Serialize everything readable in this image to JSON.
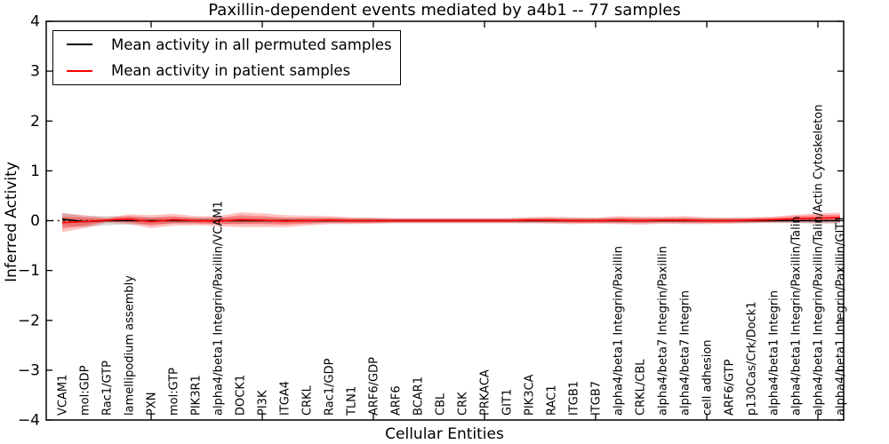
{
  "chart_data": {
    "type": "line",
    "title": "Paxillin-dependent events mediated by a4b1 -- 77 samples",
    "xlabel": "Cellular Entities",
    "ylabel": "Inferred Activity",
    "ylim": [
      -4,
      4
    ],
    "yticks": [
      4,
      3,
      2,
      1,
      0,
      -1,
      -2,
      -3,
      -4
    ],
    "xtick_values": [
      5,
      10,
      15,
      20,
      25,
      30,
      35
    ],
    "grid": false,
    "legend": {
      "position": "upper-left",
      "entries": [
        {
          "label": "Mean activity in all permuted samples",
          "color": "#000000"
        },
        {
          "label": "Mean activity in patient samples",
          "color": "#ff0000"
        }
      ]
    },
    "zero_line": {
      "value": 0,
      "style": "dotted",
      "color": "#000000"
    },
    "categories": [
      "VCAM1",
      "mol:GDP",
      "Rac1/GTP",
      "lamellipodium assembly",
      "PXN",
      "mol:GTP",
      "PIK3R1",
      "alpha4/beta1 Integrin/Paxillin/VCAM1",
      "DOCK1",
      "PI3K",
      "ITGA4",
      "CRKL",
      "Rac1/GDP",
      "TLN1",
      "ARF6/GDP",
      "ARF6",
      "BCAR1",
      "CBL",
      "CRK",
      "PRKACA",
      "GIT1",
      "PIK3CA",
      "RAC1",
      "ITGB1",
      "ITGB7",
      "alpha4/beta1 Integrin/Paxillin",
      "CRKL/CBL",
      "alpha4/beta7 Integrin/Paxillin",
      "alpha4/beta7 Integrin",
      "cell adhesion",
      "ARF6/GTP",
      "p130Cas/Crk/Dock1",
      "alpha4/beta1 Integrin",
      "alpha4/beta1 Integrin/Paxillin/Talin",
      "alpha4/beta1 Integrin/Paxillin/Talin/Actin Cytoskeleton",
      "alpha4/beta1 Integrin/Paxillin/GIT1"
    ],
    "series": [
      {
        "name": "Mean activity in all permuted samples",
        "color": "#000000",
        "style": "solid",
        "values": [
          0.03,
          -0.02,
          0.0,
          0.0,
          0.0,
          0.0,
          0.0,
          0.0,
          0.0,
          0.0,
          0.0,
          0.0,
          0.0,
          0.0,
          0.0,
          0.0,
          0.0,
          0.0,
          0.0,
          0.0,
          0.0,
          0.0,
          0.0,
          0.0,
          0.0,
          0.0,
          0.0,
          0.0,
          0.0,
          0.0,
          0.0,
          0.0,
          0.0,
          0.0,
          0.0,
          0.0
        ]
      },
      {
        "name": "Mean activity in patient samples",
        "color": "#ff0000",
        "style": "solid",
        "values": [
          -0.04,
          -0.02,
          0.01,
          0.03,
          -0.02,
          0.02,
          0.0,
          -0.01,
          0.02,
          0.01,
          -0.01,
          0.0,
          0.01,
          0.0,
          0.0,
          0.0,
          0.0,
          0.0,
          0.0,
          0.0,
          0.0,
          0.01,
          0.01,
          0.0,
          0.0,
          0.01,
          0.0,
          0.01,
          0.01,
          0.0,
          0.0,
          0.01,
          0.02,
          0.04,
          0.05,
          0.06
        ]
      }
    ],
    "bands": [
      {
        "name": "permuted-range-band",
        "color": "#999999",
        "opacity": 0.38,
        "center_series": 0,
        "half_widths": [
          0.13,
          0.11,
          0.09,
          0.08,
          0.07,
          0.06,
          0.06,
          0.06,
          0.06,
          0.05,
          0.05,
          0.05,
          0.05,
          0.05,
          0.05,
          0.05,
          0.05,
          0.05,
          0.05,
          0.05,
          0.05,
          0.05,
          0.05,
          0.05,
          0.05,
          0.05,
          0.05,
          0.05,
          0.05,
          0.05,
          0.05,
          0.05,
          0.05,
          0.05,
          0.06,
          0.06
        ]
      },
      {
        "name": "patient-range-outer-band",
        "color": "#ff0000",
        "opacity": 0.24,
        "center_series": 1,
        "half_widths": [
          0.19,
          0.13,
          0.05,
          0.1,
          0.13,
          0.12,
          0.09,
          0.1,
          0.15,
          0.14,
          0.12,
          0.1,
          0.08,
          0.07,
          0.06,
          0.05,
          0.05,
          0.05,
          0.05,
          0.05,
          0.05,
          0.06,
          0.07,
          0.07,
          0.06,
          0.08,
          0.08,
          0.07,
          0.08,
          0.07,
          0.06,
          0.06,
          0.06,
          0.08,
          0.1,
          0.1
        ]
      },
      {
        "name": "patient-range-inner-band",
        "color": "#ff0000",
        "opacity": 0.3,
        "center_series": 1,
        "half_widths": [
          0.12,
          0.08,
          0.03,
          0.06,
          0.08,
          0.07,
          0.05,
          0.06,
          0.09,
          0.08,
          0.07,
          0.06,
          0.05,
          0.04,
          0.04,
          0.03,
          0.03,
          0.03,
          0.03,
          0.03,
          0.03,
          0.04,
          0.04,
          0.04,
          0.04,
          0.05,
          0.05,
          0.04,
          0.05,
          0.04,
          0.04,
          0.04,
          0.04,
          0.05,
          0.06,
          0.06
        ]
      }
    ]
  }
}
